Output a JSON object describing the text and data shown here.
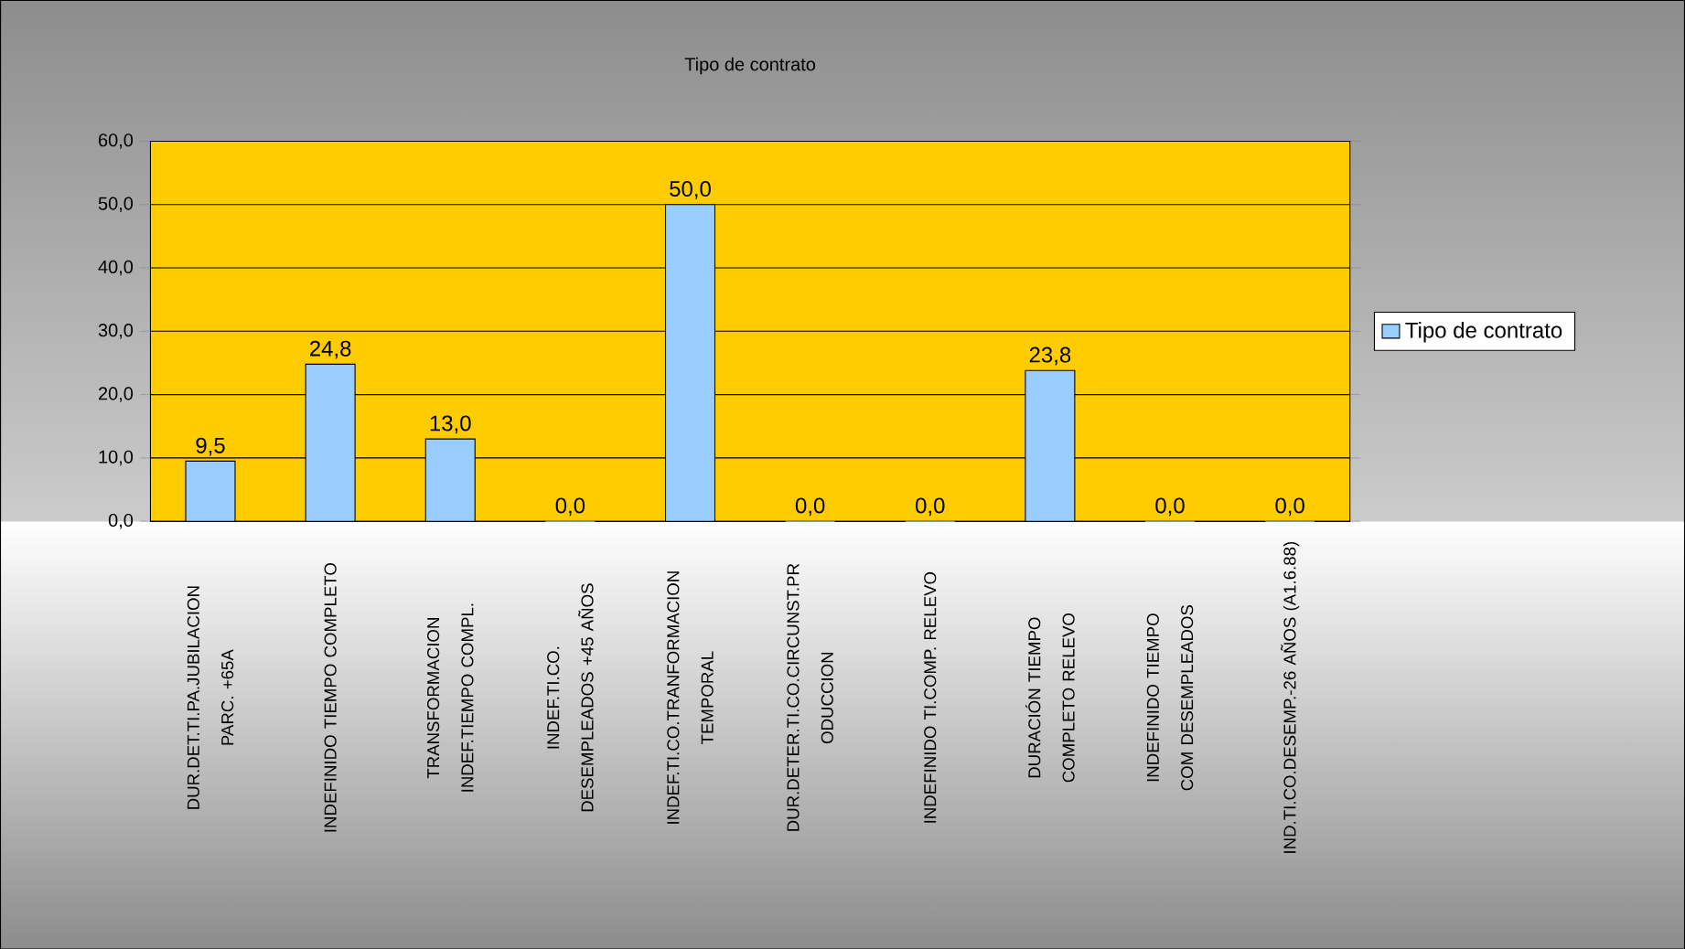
{
  "chart_data": {
    "type": "bar",
    "title": "Tipo de contrato",
    "categories": [
      "DUR.DET.TI.PA.JUBILACION PARC. +65A",
      "INDEFINIDO TIEMPO COMPLETO",
      "TRANSFORMACION INDEF.TIEMPO COMPL.",
      "INDEF.TI.CO. DESEMPLEADOS +45 AÑOS",
      "INDEF.TI.CO.TRANFORMACION TEMPORAL",
      "DUR.DETER.TI.CO.CIRCUNST.PR ODUCCION",
      "INDEFINIDO TI.COMP. RELEVO",
      "DURACIÓN TIEMPO COMPLETO RELEVO",
      "INDEFINIDO TIEMPO COM DESEMPLEADOS",
      "IND.TI.CO.DESEMP.-26 AÑOS (A1.6.88)"
    ],
    "series": [
      {
        "name": "Tipo de contrato",
        "color": "#99ccff",
        "values": [
          9.5,
          24.8,
          13.0,
          0.0,
          50.0,
          0.0,
          0.0,
          23.8,
          0.0,
          0.0
        ],
        "value_labels": [
          "9,5",
          "24,8",
          "13,0",
          "0,0",
          "50,0",
          "0,0",
          "0,0",
          "23,8",
          "0,0",
          "0,0"
        ]
      }
    ],
    "ylim": [
      0,
      60
    ],
    "yticks": [
      {
        "value": 0,
        "label": "0,0"
      },
      {
        "value": 10,
        "label": "10,0"
      },
      {
        "value": 20,
        "label": "20,0"
      },
      {
        "value": 30,
        "label": "30,0"
      },
      {
        "value": 40,
        "label": "40,0"
      },
      {
        "value": 50,
        "label": "50,0"
      },
      {
        "value": 60,
        "label": "60,0"
      }
    ],
    "grid": "y",
    "legend": "right"
  }
}
